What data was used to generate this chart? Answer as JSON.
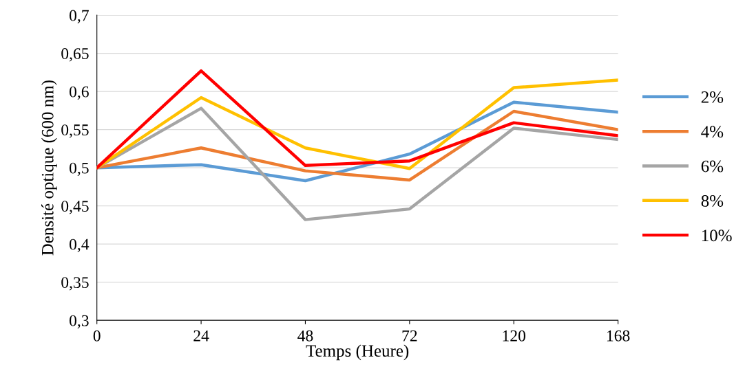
{
  "chart_data": {
    "type": "line",
    "xlabel": "Temps (Heure)",
    "ylabel": "Densité optique (600 nm)",
    "categories": [
      "0",
      "24",
      "48",
      "72",
      "120",
      "168"
    ],
    "series": [
      {
        "name": "2%",
        "color": "#5b9bd5",
        "values": [
          0.5,
          0.504,
          0.483,
          0.518,
          0.586,
          0.573
        ]
      },
      {
        "name": "4%",
        "color": "#ed7d31",
        "values": [
          0.5,
          0.526,
          0.496,
          0.484,
          0.574,
          0.55
        ]
      },
      {
        "name": "6%",
        "color": "#a5a5a5",
        "values": [
          0.5,
          0.578,
          0.432,
          0.446,
          0.552,
          0.537
        ]
      },
      {
        "name": "8%",
        "color": "#ffc000",
        "values": [
          0.5,
          0.592,
          0.526,
          0.499,
          0.605,
          0.615
        ]
      },
      {
        "name": "10%",
        "color": "#ff0000",
        "values": [
          0.5,
          0.627,
          0.503,
          0.509,
          0.559,
          0.542
        ]
      }
    ],
    "ylim": [
      0.3,
      0.7
    ],
    "yticks": [
      {
        "value": 0.3,
        "label": "0,3"
      },
      {
        "value": 0.35,
        "label": "0,35"
      },
      {
        "value": 0.4,
        "label": "0,4"
      },
      {
        "value": 0.45,
        "label": "0,45"
      },
      {
        "value": 0.5,
        "label": "0,5"
      },
      {
        "value": 0.55,
        "label": "0,55"
      },
      {
        "value": 0.6,
        "label": "0,6"
      },
      {
        "value": 0.65,
        "label": "0,65"
      },
      {
        "value": 0.7,
        "label": "0,7"
      }
    ],
    "grid": "y",
    "legend": "right",
    "marker": "none",
    "line_style": "solid"
  }
}
